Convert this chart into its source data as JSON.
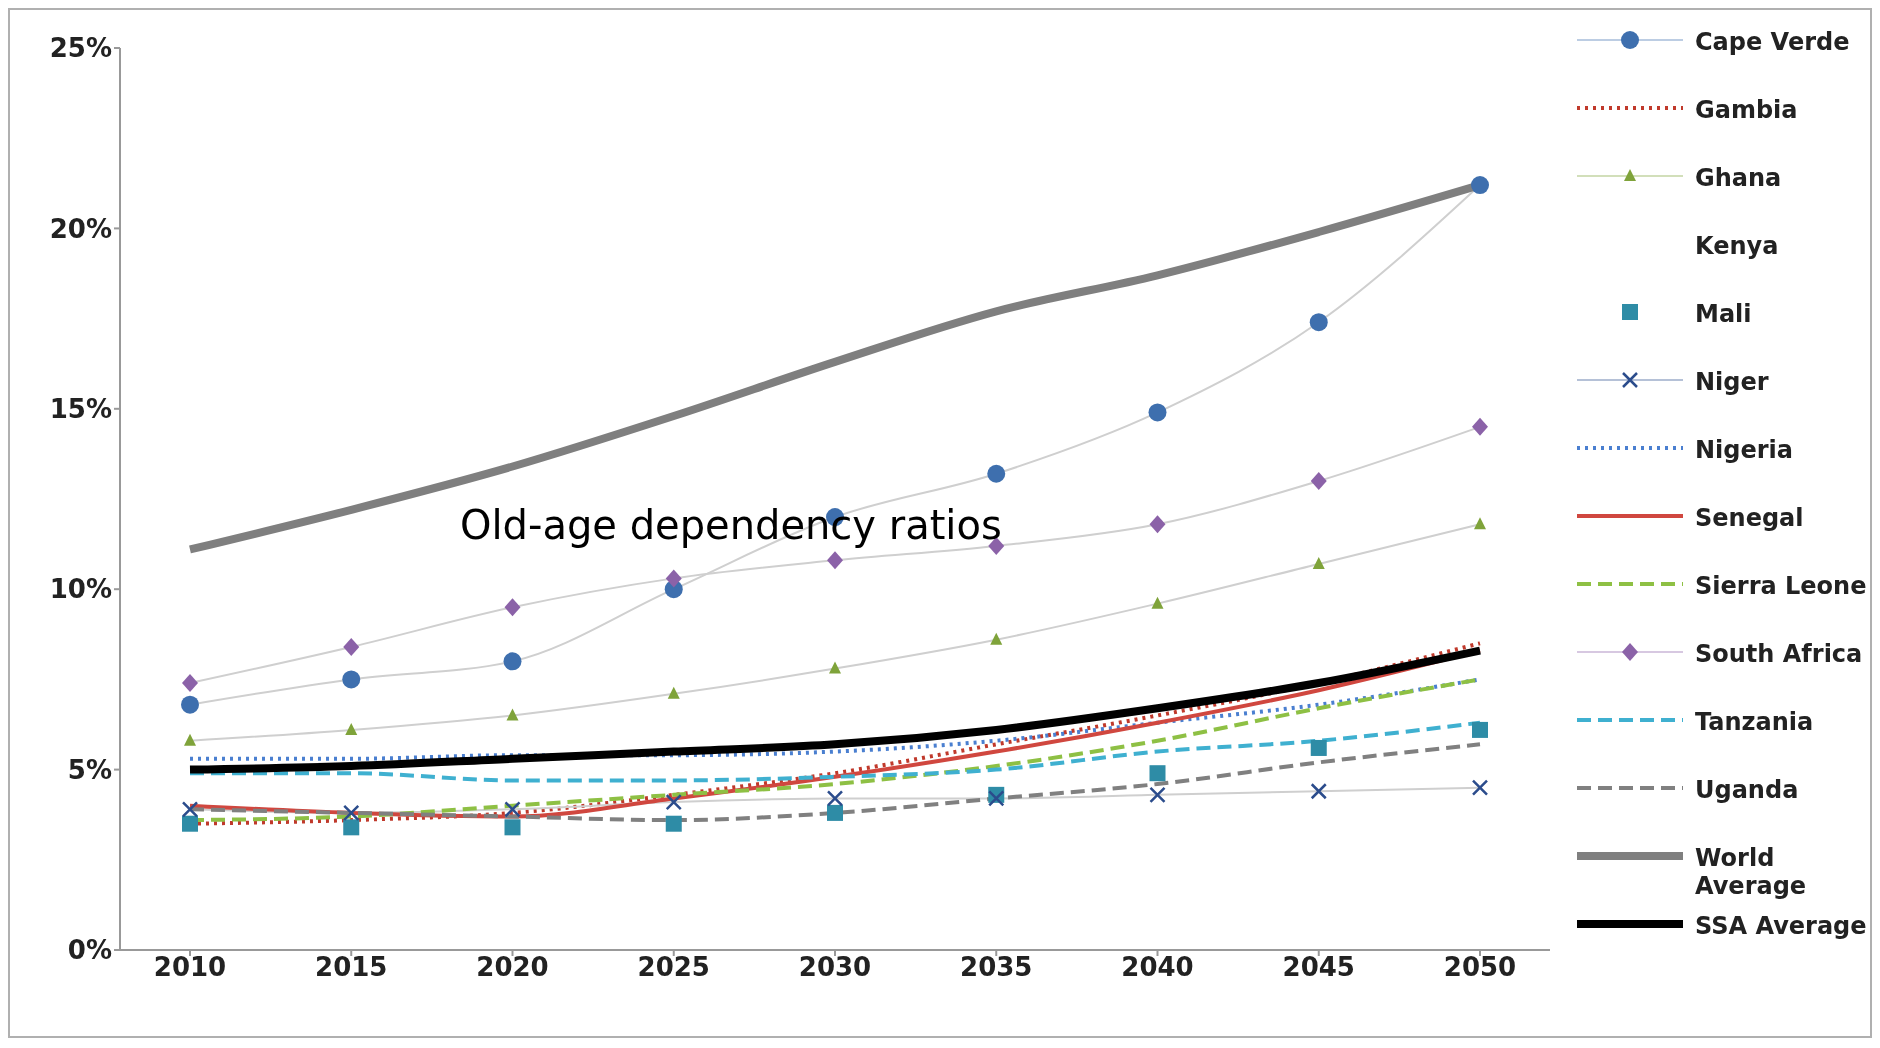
{
  "chart_data": {
    "type": "line",
    "title": "Old-age dependency ratios",
    "categories": [
      "2010",
      "2015",
      "2020",
      "2025",
      "2030",
      "2035",
      "2040",
      "2045",
      "2050"
    ],
    "ylim": [
      0,
      25
    ],
    "yticks": [
      {
        "value": 0,
        "label": "0%"
      },
      {
        "value": 5,
        "label": "5%"
      },
      {
        "value": 10,
        "label": "10%"
      },
      {
        "value": 15,
        "label": "15%"
      },
      {
        "value": 20,
        "label": "20%"
      },
      {
        "value": 25,
        "label": "25%"
      }
    ],
    "grid": false,
    "legend": "right",
    "series": [
      {
        "name": "Cape Verde",
        "color": "#3e6fae",
        "marker": "circle",
        "line_style": "solid",
        "values": [
          6.8,
          7.5,
          8.0,
          10.0,
          12.0,
          13.2,
          14.9,
          17.4,
          21.2
        ]
      },
      {
        "name": "Gambia",
        "color": "#c0392b",
        "marker": "none",
        "line_style": "dotted",
        "values": [
          3.5,
          3.6,
          3.8,
          4.3,
          4.9,
          5.7,
          6.5,
          7.4,
          8.5
        ]
      },
      {
        "name": "Ghana",
        "color": "#7fa33a",
        "marker": "triangle",
        "line_style": "solid",
        "values": [
          5.8,
          6.1,
          6.5,
          7.1,
          7.8,
          8.6,
          9.6,
          10.7,
          11.8
        ]
      },
      {
        "name": "Kenya",
        "marker": "none",
        "line_style": "solid",
        "values": [
          null,
          null,
          null,
          null,
          null,
          null,
          null,
          null,
          null
        ]
      },
      {
        "name": "Mali",
        "type": "scatter",
        "color": "#2e8ca6",
        "marker": "square",
        "values": [
          3.5,
          3.4,
          3.4,
          3.5,
          3.8,
          4.3,
          4.9,
          5.6,
          6.1
        ]
      },
      {
        "name": "Niger",
        "color": "#2b4c8c",
        "marker": "cross",
        "line_style": "solid",
        "values": [
          3.9,
          3.8,
          3.9,
          4.1,
          4.2,
          4.2,
          4.3,
          4.4,
          4.5
        ]
      },
      {
        "name": "Nigeria",
        "color": "#4a7fd0",
        "marker": "none",
        "line_style": "dotted",
        "values": [
          5.3,
          5.3,
          5.4,
          5.4,
          5.5,
          5.8,
          6.3,
          6.8,
          7.5
        ]
      },
      {
        "name": "Senegal",
        "color": "#d0473f",
        "marker": "none",
        "line_style": "solid",
        "values": [
          4.0,
          3.8,
          3.7,
          4.2,
          4.8,
          5.5,
          6.3,
          7.2,
          8.3
        ]
      },
      {
        "name": "Sierra Leone",
        "color": "#8ec044",
        "marker": "none",
        "line_style": "dashed",
        "values": [
          3.6,
          3.7,
          4.0,
          4.3,
          4.6,
          5.1,
          5.8,
          6.7,
          7.5
        ]
      },
      {
        "name": "South Africa",
        "color": "#8b62a8",
        "marker": "diamond",
        "line_style": "solid",
        "values": [
          7.4,
          8.4,
          9.5,
          10.3,
          10.8,
          11.2,
          11.8,
          13.0,
          14.5
        ]
      },
      {
        "name": "Tanzania",
        "color": "#3fb0d0",
        "marker": "none",
        "line_style": "dashed",
        "values": [
          4.9,
          4.9,
          4.7,
          4.7,
          4.8,
          5.0,
          5.5,
          5.8,
          6.3
        ]
      },
      {
        "name": "Uganda",
        "color": "#808080",
        "marker": "none",
        "line_style": "dashed",
        "values": [
          3.9,
          3.8,
          3.7,
          3.6,
          3.8,
          4.2,
          4.6,
          5.2,
          5.7
        ]
      },
      {
        "name": "World Average",
        "color": "#7f7f7f",
        "marker": "none",
        "line_style": "solid",
        "values": [
          11.1,
          12.2,
          13.4,
          14.8,
          16.3,
          17.7,
          18.7,
          19.9,
          21.2
        ]
      },
      {
        "name": "SSA Average",
        "color": "#000000",
        "marker": "none",
        "line_style": "solid",
        "values": [
          5.0,
          5.1,
          5.3,
          5.5,
          5.7,
          6.1,
          6.7,
          7.4,
          8.3
        ]
      }
    ]
  }
}
